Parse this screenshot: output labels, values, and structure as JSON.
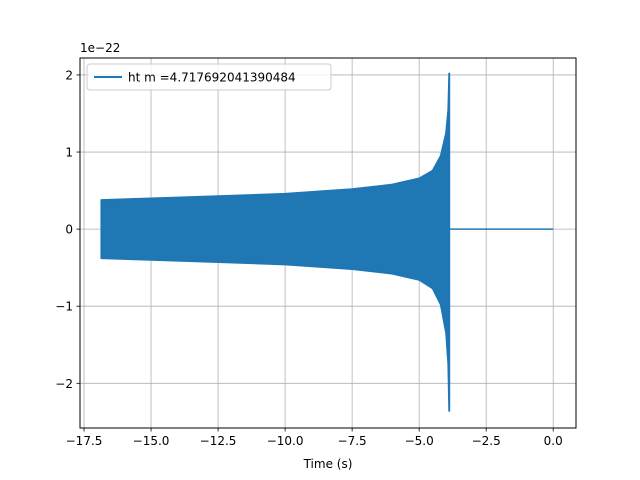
{
  "chart_data": {
    "type": "line",
    "title": "",
    "xlabel": "Time (s)",
    "ylabel": "",
    "y_scale_label": "1e−22",
    "xlim": [
      -17.65,
      0.85
    ],
    "ylim": [
      -2.58,
      2.22
    ],
    "xticks": [
      -17.5,
      -15.0,
      -12.5,
      -10.0,
      -7.5,
      -5.0,
      -2.5,
      0.0
    ],
    "xtick_labels": [
      "−17.5",
      "−15.0",
      "−12.5",
      "−10.0",
      "−7.5",
      "−5.0",
      "−2.5",
      "0.0"
    ],
    "yticks": [
      -2,
      -1,
      0,
      1,
      2
    ],
    "ytick_labels": [
      "−2",
      "−1",
      "0",
      "1",
      "2"
    ],
    "grid": true,
    "legend_position": "upper-left",
    "series": [
      {
        "name": "ht m =4.717692041390484",
        "color": "#1f77b4",
        "signal_start": -16.86,
        "merger_time": -3.87,
        "end_time": 0.0,
        "envelope_upper": [
          [
            -16.86,
            0.38
          ],
          [
            -15.0,
            0.4
          ],
          [
            -12.5,
            0.43
          ],
          [
            -10.0,
            0.46
          ],
          [
            -7.5,
            0.52
          ],
          [
            -6.0,
            0.58
          ],
          [
            -5.0,
            0.66
          ],
          [
            -4.5,
            0.76
          ],
          [
            -4.2,
            0.95
          ],
          [
            -4.0,
            1.25
          ],
          [
            -3.92,
            1.55
          ],
          [
            -3.885,
            2.02
          ]
        ],
        "envelope_lower": [
          [
            -16.86,
            -0.38
          ],
          [
            -15.0,
            -0.4
          ],
          [
            -12.5,
            -0.43
          ],
          [
            -10.0,
            -0.46
          ],
          [
            -7.5,
            -0.52
          ],
          [
            -6.0,
            -0.58
          ],
          [
            -5.0,
            -0.66
          ],
          [
            -4.5,
            -0.77
          ],
          [
            -4.2,
            -0.98
          ],
          [
            -4.0,
            -1.35
          ],
          [
            -3.92,
            -1.75
          ],
          [
            -3.885,
            -2.36
          ]
        ],
        "post_merger_value": 0.0
      }
    ]
  }
}
